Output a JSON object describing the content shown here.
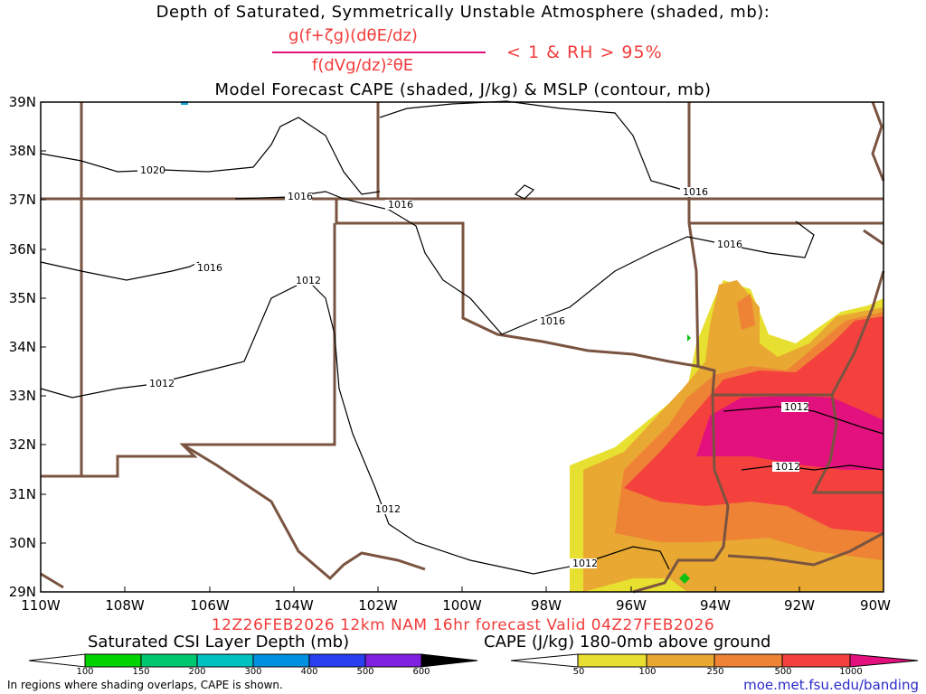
{
  "titles": {
    "line1": "Depth of Saturated, Symmetrically Unstable Atmosphere (shaded, mb):",
    "numerator": "g(f+ζg)(dθE/dz)",
    "denominator": "f(dVg/dz)²θE",
    "condition": "< 1 & RH > 95%",
    "line3": "Model Forecast CAPE (shaded, J/kg) & MSLP (contour, mb)"
  },
  "map": {
    "lat_labels": [
      "39N",
      "38N",
      "37N",
      "36N",
      "35N",
      "34N",
      "33N",
      "32N",
      "31N",
      "30N",
      "29N"
    ],
    "lon_labels": [
      "110W",
      "108W",
      "106W",
      "104W",
      "102W",
      "100W",
      "98W",
      "96W",
      "94W",
      "92W",
      "90W"
    ],
    "isobar_labels": [
      "1020",
      "1016",
      "1016",
      "1016",
      "1016",
      "1016",
      "1016",
      "1012",
      "1012",
      "1012",
      "1012",
      "1012",
      "1012"
    ],
    "colors": {
      "state_lines": "#7a5440",
      "cape_50": "#e8e030",
      "cape_100": "#e8a832",
      "cape_250": "#ee8235",
      "cape_500": "#f4413e",
      "cape_1000": "#e2117e"
    }
  },
  "valid_line": "12Z26FEB2026 12km NAM 16hr forecast Valid 04Z27FEB2026",
  "legend_csi": {
    "title": "Saturated CSI Layer Depth (mb)",
    "ticks": [
      "100",
      "150",
      "200",
      "300",
      "400",
      "500",
      "600"
    ],
    "colors": [
      "#00d400",
      "#00c870",
      "#00c0c0",
      "#0090e0",
      "#2840f0",
      "#8020e0",
      "#000000"
    ]
  },
  "legend_cape": {
    "title": "CAPE (J/kg) 180-0mb above ground",
    "ticks": [
      "50",
      "100",
      "250",
      "500",
      "1000"
    ],
    "colors": [
      "#e8e030",
      "#e8a832",
      "#ee8235",
      "#f4413e",
      "#e2117e"
    ]
  },
  "footer_note": "In regions where shading overlaps, CAPE is shown.",
  "url": "moe.met.fsu.edu/banding"
}
